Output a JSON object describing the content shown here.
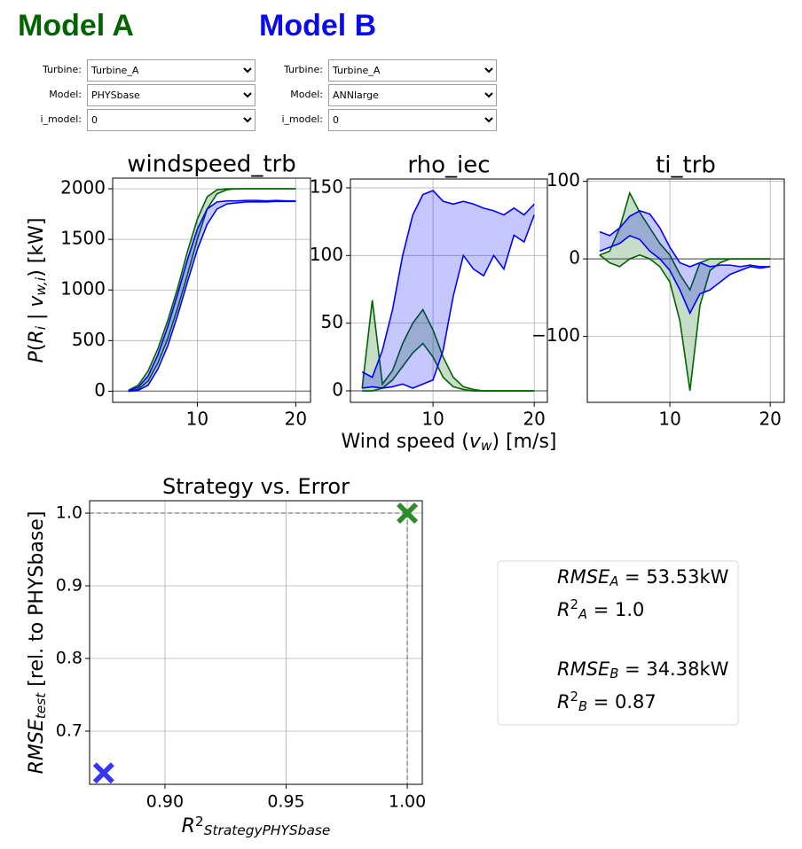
{
  "model_a": {
    "title": "Model A",
    "color": "#006400",
    "controls": [
      {
        "label": "Turbine:",
        "value": "Turbine_A"
      },
      {
        "label": "Model:",
        "value": "PHYSbase"
      },
      {
        "label": "i_model:",
        "value": "0"
      }
    ]
  },
  "model_b": {
    "title": "Model B",
    "color": "#0a0aee",
    "controls": [
      {
        "label": "Turbine:",
        "value": "Turbine_A"
      },
      {
        "label": "Model:",
        "value": "ANNlarge"
      },
      {
        "label": "i_model:",
        "value": "0"
      }
    ]
  },
  "chart_data": [
    {
      "type": "band",
      "title": "windspeed_trb",
      "ylabel": [
        {
          "text": "P",
          "italic": true
        },
        {
          "text": "("
        },
        {
          "text": "R",
          "italic": true
        },
        {
          "text": "i",
          "sub": true,
          "italic": true
        },
        {
          "text": " | "
        },
        {
          "text": "v",
          "italic": true
        },
        {
          "text": "w,i",
          "sub": true,
          "italic": true
        },
        {
          "text": ") [kW]"
        }
      ],
      "x": [
        3,
        4,
        5,
        6,
        7,
        8,
        9,
        10,
        11,
        12,
        13,
        14,
        15,
        16,
        17,
        18,
        19,
        20
      ],
      "xlim": [
        1.4,
        21.5
      ],
      "ylim": [
        -110,
        2105
      ],
      "xticks": [
        10,
        20
      ],
      "yticks": [
        0,
        500,
        1000,
        1500,
        2000
      ],
      "grid": true,
      "series": [
        {
          "color": "#006400",
          "lower": [
            0,
            20,
            100,
            280,
            520,
            820,
            1150,
            1500,
            1800,
            1950,
            1990,
            2000,
            2000,
            2000,
            2000,
            2000,
            2000,
            2000
          ],
          "upper": [
            10,
            60,
            200,
            420,
            700,
            1020,
            1380,
            1700,
            1920,
            1990,
            2000,
            2000,
            2000,
            2000,
            2000,
            2000,
            2000,
            2000
          ]
        },
        {
          "color": "#0000ff",
          "lower": [
            0,
            10,
            60,
            220,
            450,
            750,
            1080,
            1400,
            1650,
            1800,
            1850,
            1860,
            1870,
            1870,
            1870,
            1875,
            1875,
            1875
          ],
          "upper": [
            5,
            40,
            150,
            360,
            640,
            960,
            1300,
            1600,
            1800,
            1870,
            1880,
            1880,
            1885,
            1885,
            1880,
            1885,
            1880,
            1880
          ]
        }
      ]
    },
    {
      "type": "band",
      "title": "rho_iec",
      "xlabel": [
        {
          "text": "Wind speed ("
        },
        {
          "text": "v",
          "italic": true
        },
        {
          "text": "w",
          "sub": true,
          "italic": true
        },
        {
          "text": ") [m/s]"
        }
      ],
      "x": [
        3,
        4,
        5,
        6,
        7,
        8,
        9,
        10,
        11,
        12,
        13,
        14,
        15,
        16,
        17,
        18,
        19,
        20
      ],
      "xlim": [
        1.84,
        21.3
      ],
      "ylim": [
        -8.5,
        156.5
      ],
      "xticks": [
        10,
        20
      ],
      "yticks": [
        0,
        50,
        100,
        150
      ],
      "grid": true,
      "series": [
        {
          "color": "#006400",
          "lower": [
            0,
            0,
            2,
            8,
            18,
            28,
            35,
            25,
            10,
            3,
            1,
            0,
            0,
            0,
            0,
            0,
            0,
            0
          ],
          "upper": [
            2,
            67,
            5,
            15,
            35,
            50,
            60,
            45,
            25,
            10,
            3,
            1,
            0,
            0,
            0,
            0,
            0,
            0
          ]
        },
        {
          "color": "#0000ff",
          "lower": [
            2,
            3,
            2,
            3,
            5,
            2,
            5,
            8,
            30,
            70,
            100,
            90,
            85,
            100,
            90,
            115,
            110,
            130
          ],
          "upper": [
            14,
            10,
            30,
            60,
            100,
            130,
            145,
            148,
            140,
            138,
            140,
            138,
            135,
            133,
            130,
            135,
            130,
            138
          ]
        }
      ]
    },
    {
      "type": "band",
      "title": "ti_trb",
      "x": [
        3,
        4,
        5,
        6,
        7,
        8,
        9,
        10,
        11,
        12,
        13,
        14,
        15,
        16,
        17,
        18,
        19,
        20
      ],
      "xlim": [
        1.77,
        21.4
      ],
      "ylim": [
        -185,
        103
      ],
      "xticks": [
        10,
        20
      ],
      "yticks": [
        {
          "value": -100,
          "label": "−100"
        },
        0,
        100
      ],
      "grid": true,
      "series": [
        {
          "color": "#006400",
          "lower": [
            5,
            -5,
            -10,
            0,
            5,
            0,
            -10,
            -30,
            -80,
            -170,
            -60,
            -15,
            -5,
            0,
            0,
            0,
            0,
            0
          ],
          "upper": [
            5,
            10,
            40,
            85,
            60,
            40,
            20,
            5,
            -20,
            -40,
            -5,
            0,
            0,
            0,
            0,
            0,
            0,
            0
          ]
        },
        {
          "color": "#0000ff",
          "lower": [
            10,
            15,
            20,
            30,
            25,
            10,
            0,
            -15,
            -40,
            -70,
            -45,
            -40,
            -30,
            -20,
            -15,
            -10,
            -12,
            -10
          ],
          "upper": [
            35,
            30,
            40,
            55,
            62,
            58,
            40,
            15,
            -5,
            -10,
            -5,
            -10,
            -8,
            -8,
            -10,
            -8,
            -10,
            -10
          ]
        }
      ]
    },
    {
      "type": "scatter",
      "title": "Strategy vs. Error",
      "xlabel": [
        {
          "text": "R",
          "italic": true
        },
        {
          "text": "2",
          "sup": true
        },
        {
          "text": "StrategyPHYSbase",
          "sub": true,
          "italic": true
        }
      ],
      "ylabel": [
        {
          "text": "RMSE",
          "italic": true
        },
        {
          "text": "test",
          "sub": true,
          "italic": true
        },
        {
          "text": " [rel. to PHYSbase]"
        }
      ],
      "xlim": [
        0.8689,
        1.0062
      ],
      "ylim": [
        0.6268,
        1.0171
      ],
      "xticks": [
        {
          "value": 0.9,
          "label": "0.90"
        },
        {
          "value": 0.95,
          "label": "0.95"
        },
        {
          "value": 1,
          "label": "1.00"
        }
      ],
      "yticks": [
        0.7,
        0.8,
        0.9,
        {
          "value": 1,
          "label": "1.0"
        }
      ],
      "grid": true,
      "ref_x": 1.0,
      "ref_y": 1.0,
      "series": [
        {
          "color": "#2e8b2e",
          "x": [
            1.0
          ],
          "values": [
            1.0
          ]
        },
        {
          "color": "#3535f5",
          "x": [
            0.8747
          ],
          "values": [
            0.6423
          ]
        }
      ]
    }
  ],
  "metrics": [
    [
      {
        "text": "RMSE",
        "italic": true
      },
      {
        "text": "A",
        "sub": true,
        "italic": true
      },
      {
        "text": " = 53.53kW"
      }
    ],
    [
      {
        "text": "R",
        "italic": true
      },
      {
        "text": "2",
        "sup": true
      },
      {
        "text": "A",
        "sub": true,
        "italic": true
      },
      {
        "text": " = 1.0"
      }
    ],
    [
      {
        "text": "RMSE",
        "italic": true
      },
      {
        "text": "B",
        "sub": true,
        "italic": true
      },
      {
        "text": " = 34.38kW"
      }
    ],
    [
      {
        "text": "R",
        "italic": true
      },
      {
        "text": "2",
        "sup": true
      },
      {
        "text": "B",
        "sub": true,
        "italic": true
      },
      {
        "text": " = 0.87"
      }
    ]
  ]
}
